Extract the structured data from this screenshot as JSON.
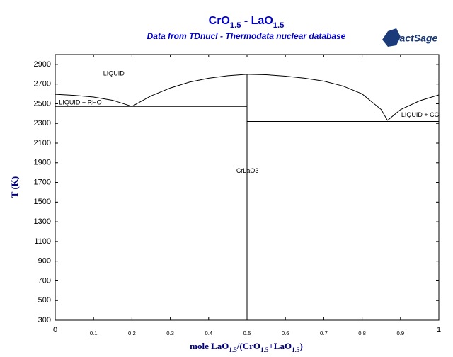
{
  "chart_data": {
    "type": "line",
    "title": "CrO1.5 - LaO1.5",
    "subtitle": "Data from TDnucl - Thermodata nuclear database",
    "logo": "FactSage",
    "x_label": "mole LaO1.5/(CrO1.5+LaO1.5)",
    "y_label": "T (K)",
    "xlim": [
      0,
      1
    ],
    "ylim": [
      300,
      3000
    ],
    "xticks": [
      0,
      0.1,
      0.2,
      0.3,
      0.4,
      0.5,
      0.6,
      0.7,
      0.8,
      0.9,
      1
    ],
    "yticks": [
      300,
      500,
      700,
      900,
      1100,
      1300,
      1500,
      1700,
      1900,
      2100,
      2300,
      2500,
      2700,
      2900
    ],
    "series": [
      {
        "color": "#000000",
        "x": [
          0,
          0.05,
          0.1,
          0.15,
          0.2
        ],
        "values": [
          2596,
          2585,
          2568,
          2535,
          2473
        ]
      },
      {
        "color": "#000000",
        "x": [
          0.2,
          0.25,
          0.3,
          0.35,
          0.4,
          0.45,
          0.5
        ],
        "values": [
          2473,
          2580,
          2660,
          2720,
          2760,
          2785,
          2799
        ]
      },
      {
        "color": "#000000",
        "x": [
          0.5,
          0.55,
          0.6,
          0.65,
          0.7,
          0.75,
          0.8,
          0.85,
          0.866
        ],
        "values": [
          2799,
          2795,
          2780,
          2760,
          2730,
          2680,
          2600,
          2440,
          2330
        ]
      },
      {
        "color": "#000000",
        "x": [
          0.866,
          0.9,
          0.95,
          1
        ],
        "values": [
          2330,
          2440,
          2530,
          2590
        ]
      },
      {
        "color": "#000000",
        "x": [
          0,
          0.5
        ],
        "values": [
          2473,
          2473
        ]
      },
      {
        "color": "#000000",
        "x": [
          0.5,
          1
        ],
        "values": [
          2320,
          2320
        ]
      },
      {
        "color": "#000000",
        "x": [
          0.5,
          0.5
        ],
        "values": [
          300,
          2799
        ]
      }
    ],
    "annotations": [
      {
        "text": "LIQUID",
        "x": 0.125,
        "y": 2806
      },
      {
        "text": "LIQUID + RHO",
        "x": 0.01,
        "y": 2509
      },
      {
        "text": "LIQUID + CC",
        "x": 0.902,
        "y": 2385
      },
      {
        "text": "CrLaO3",
        "x": 0.472,
        "y": 1813
      }
    ]
  }
}
